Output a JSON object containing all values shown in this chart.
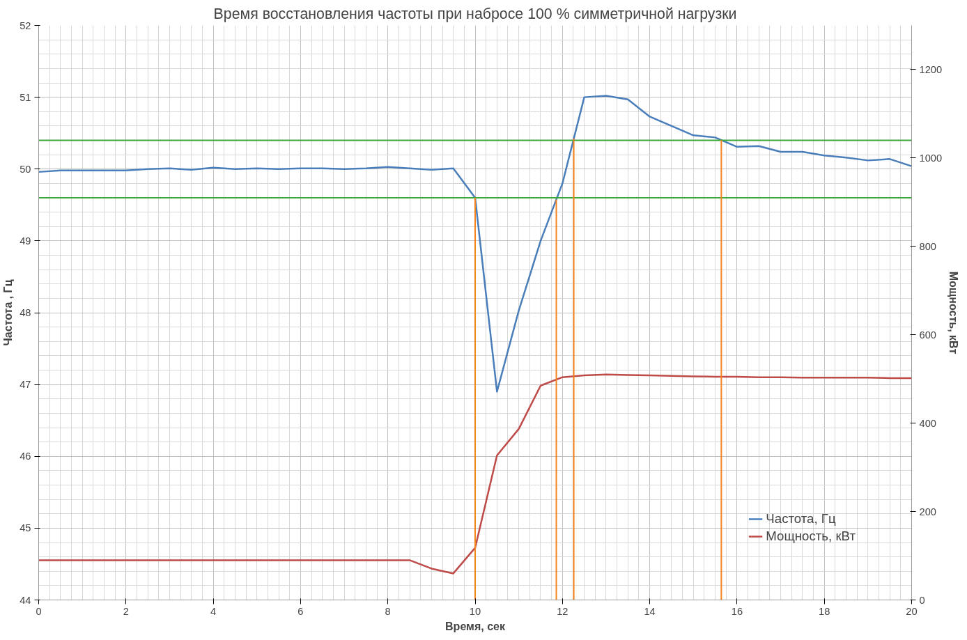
{
  "chart_data": {
    "type": "line",
    "title": "Время восстановления частоты при набросе 100 % симметричной нагрузки",
    "xlabel": "Время, сек",
    "ylabel": "Частота , Гц",
    "y2label": "Мощность, кВт",
    "x": [
      0,
      0.5,
      1,
      1.5,
      2,
      2.5,
      3,
      3.5,
      4,
      4.5,
      5,
      5.5,
      6,
      6.5,
      7,
      7.5,
      8,
      8.5,
      9,
      9.5,
      10,
      10.5,
      11,
      11.5,
      12,
      12.5,
      13,
      13.5,
      14,
      14.5,
      15,
      15.5,
      16,
      16.5,
      17,
      17.5,
      18,
      18.5,
      19,
      19.5,
      20
    ],
    "series": [
      {
        "name": "Частота, Гц",
        "color": "#4a7ebb",
        "values": [
          49.96,
          49.98,
          49.98,
          49.98,
          49.98,
          50.0,
          50.01,
          49.99,
          50.02,
          50.0,
          50.01,
          50.0,
          50.01,
          50.01,
          50.0,
          50.01,
          50.03,
          50.01,
          49.99,
          50.01,
          49.6,
          46.9,
          48.03,
          49.0,
          49.8,
          51.0,
          51.02,
          50.97,
          50.73,
          50.6,
          50.47,
          50.44,
          50.31,
          50.32,
          50.24,
          50.24,
          50.19,
          50.16,
          50.12,
          50.14,
          50.04
        ]
      },
      {
        "name": "Мощность, кВт",
        "color": "#be4b48",
        "axis": "y2",
        "values": [
          90,
          90,
          90,
          90,
          90,
          90,
          90,
          90,
          90,
          90,
          90,
          90,
          90,
          90,
          90,
          90,
          90,
          90,
          71,
          60,
          118,
          327,
          387,
          485,
          504,
          508,
          510,
          509,
          508,
          507,
          506,
          505,
          505,
          504,
          504,
          503,
          503,
          503,
          503,
          502,
          502
        ]
      }
    ],
    "xlim": [
      0,
      20
    ],
    "xticks": [
      0,
      2,
      4,
      6,
      8,
      10,
      12,
      14,
      16,
      18,
      20
    ],
    "ylim": [
      44,
      52
    ],
    "yticks": [
      44,
      45,
      46,
      47,
      48,
      49,
      50,
      51,
      52
    ],
    "y2lim": [
      0,
      1300
    ],
    "y2ticks": [
      0,
      200,
      400,
      600,
      800,
      1000,
      1200
    ],
    "ref_lines": [
      {
        "axis": "y",
        "value": 50.4,
        "color": "#3aa83a"
      },
      {
        "axis": "y",
        "value": 49.6,
        "color": "#3aa83a"
      },
      {
        "axis": "x",
        "value": 10,
        "color": "#f5841f"
      },
      {
        "axis": "x",
        "value": 11.86,
        "color": "#f5841f"
      },
      {
        "axis": "x",
        "value": 12.26,
        "color": "#f5841f"
      },
      {
        "axis": "x",
        "value": 15.64,
        "color": "#f5841f"
      }
    ],
    "grid": true,
    "legend": "bottom right",
    "marker": "none",
    "line_style": "solid"
  }
}
